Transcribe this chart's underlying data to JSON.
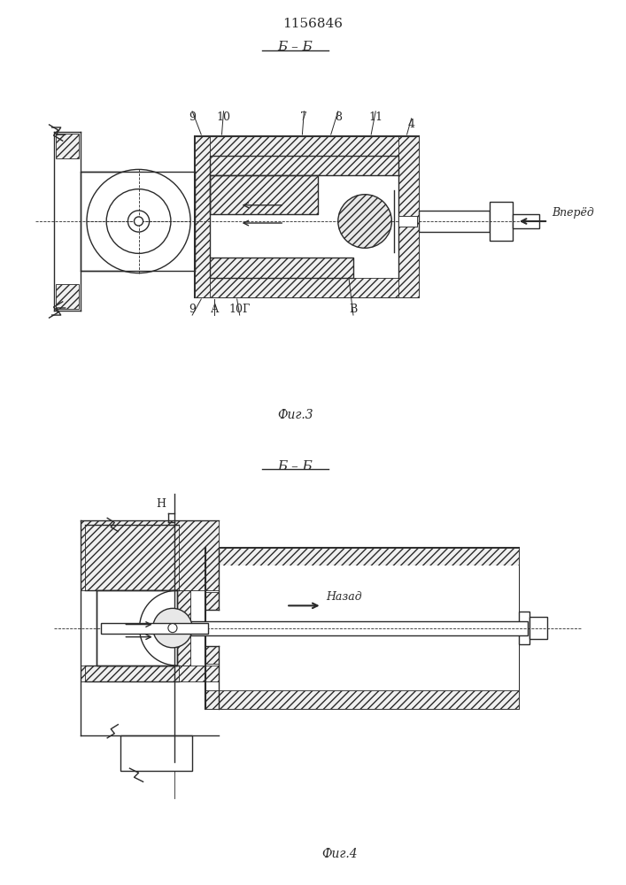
{
  "title": "1156846",
  "fig3_label": "Б – Б",
  "fig3_caption": "Фиг.3",
  "fig4_label": "Б – Б",
  "fig4_caption": "Фиг.4",
  "vpered_text": "Вперёд",
  "nazad_text": "Назад",
  "bg_color": "#ffffff",
  "line_color": "#2a2a2a"
}
